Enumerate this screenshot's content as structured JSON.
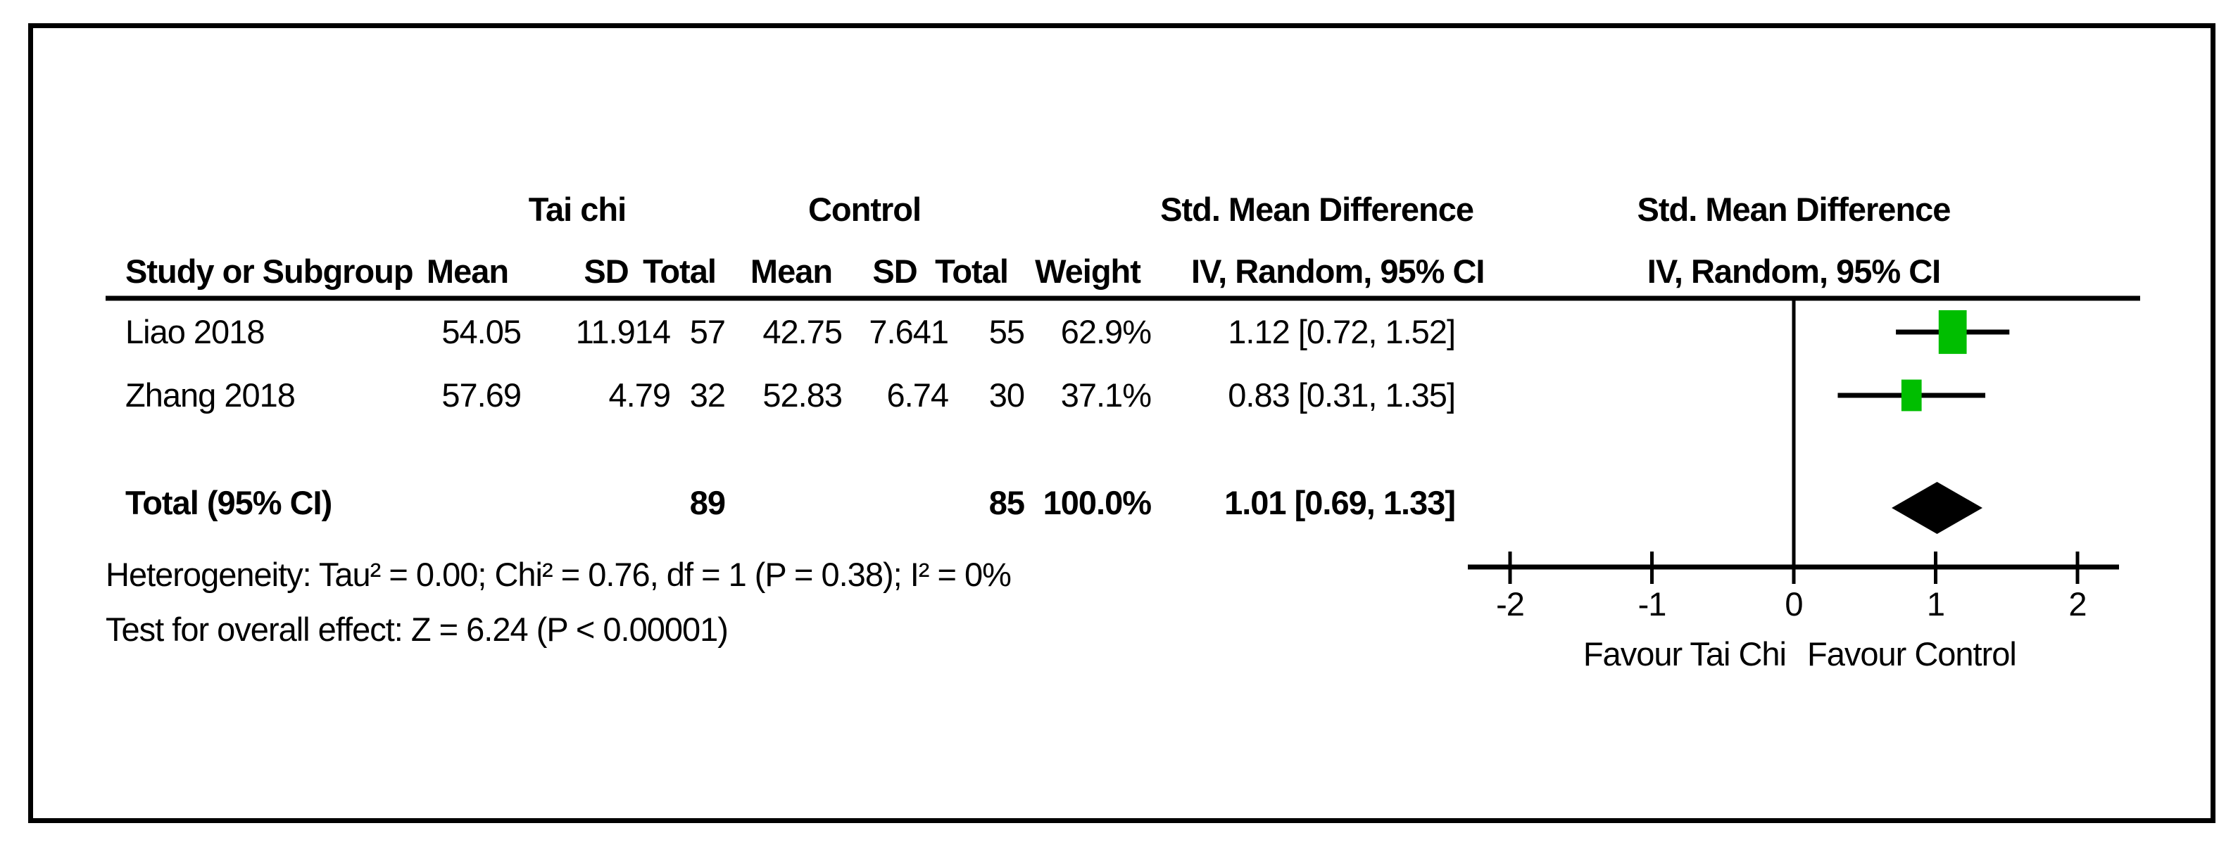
{
  "colors": {
    "marker_green": "#00be00",
    "diamond_black": "#000000",
    "line_black": "#000000",
    "text_black": "#000000",
    "background": "#ffffff"
  },
  "table": {
    "group_headers": {
      "experimental": "Tai chi",
      "control": "Control",
      "effect": "Std. Mean Difference"
    },
    "columns": {
      "study": "Study or Subgroup",
      "mean1": "Mean",
      "sd1": "SD",
      "total1": "Total",
      "mean2": "Mean",
      "sd2": "SD",
      "total2": "Total",
      "weight": "Weight",
      "ci": "IV, Random, 95% CI"
    },
    "studies": [
      {
        "name": "Liao 2018",
        "mean": "54.05",
        "sd": "11.914",
        "total": "57",
        "c_mean": "42.75",
        "c_sd": "7.641",
        "c_total": "55",
        "weight": "62.9%",
        "ci": "1.12 [0.72, 1.52]"
      },
      {
        "name": "Zhang 2018",
        "mean": "57.69",
        "sd": "4.79",
        "total": "32",
        "c_mean": "52.83",
        "c_sd": "6.74",
        "c_total": "30",
        "weight": "37.1%",
        "ci": "0.83 [0.31, 1.35]"
      }
    ],
    "total_row": {
      "label": "Total (95% CI)",
      "total": "89",
      "c_total": "85",
      "weight": "100.0%",
      "ci": "1.01 [0.69, 1.33]"
    },
    "heterogeneity": "Heterogeneity: Tau² = 0.00; Chi² = 0.76, df = 1 (P = 0.38); I² = 0%",
    "overall_effect": "Test for overall effect: Z = 6.24 (P < 0.00001)"
  },
  "plot": {
    "title": "Std. Mean Difference",
    "subtitle": "IV, Random, 95% CI",
    "favour_left": "Favour Tai Chi",
    "favour_right": "Favour Control"
  },
  "chart_data": {
    "type": "forest",
    "title": "Std. Mean Difference",
    "method": "IV, Random, 95% CI",
    "x_ticks": [
      -2,
      -1,
      0,
      1,
      2
    ],
    "xlim": [
      -2.3,
      2.3
    ],
    "studies": [
      {
        "name": "Liao 2018",
        "est": 1.12,
        "lo": 0.72,
        "hi": 1.52,
        "weight_pct": 62.9
      },
      {
        "name": "Zhang 2018",
        "est": 0.83,
        "lo": 0.31,
        "hi": 1.35,
        "weight_pct": 37.1
      }
    ],
    "total": {
      "label": "Total (95% CI)",
      "est": 1.01,
      "lo": 0.69,
      "hi": 1.33,
      "weight_pct": 100.0
    },
    "heterogeneity": {
      "tau2": 0.0,
      "chi2": 0.76,
      "df": 1,
      "p": 0.38,
      "i2_pct": 0
    },
    "overall_effect": {
      "z": 6.24,
      "p": "< 0.00001"
    }
  }
}
